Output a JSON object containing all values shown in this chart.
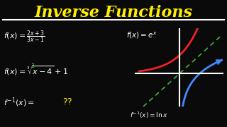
{
  "bg_color": "#0a0a0a",
  "title": "Inverse Functions",
  "title_color": "#FFEE00",
  "title_fontsize": 16,
  "underline_color": "#FFFFFF",
  "text_color": "#FFFFFF",
  "red_x_color": "#FF4444",
  "green_color": "#44CC44",
  "qq_color": "#FFEE00",
  "red_curve_color": "#EE2222",
  "blue_curve_color": "#4488FF",
  "green_dash_color": "#44BB44",
  "axis_color": "#FFFFFF"
}
